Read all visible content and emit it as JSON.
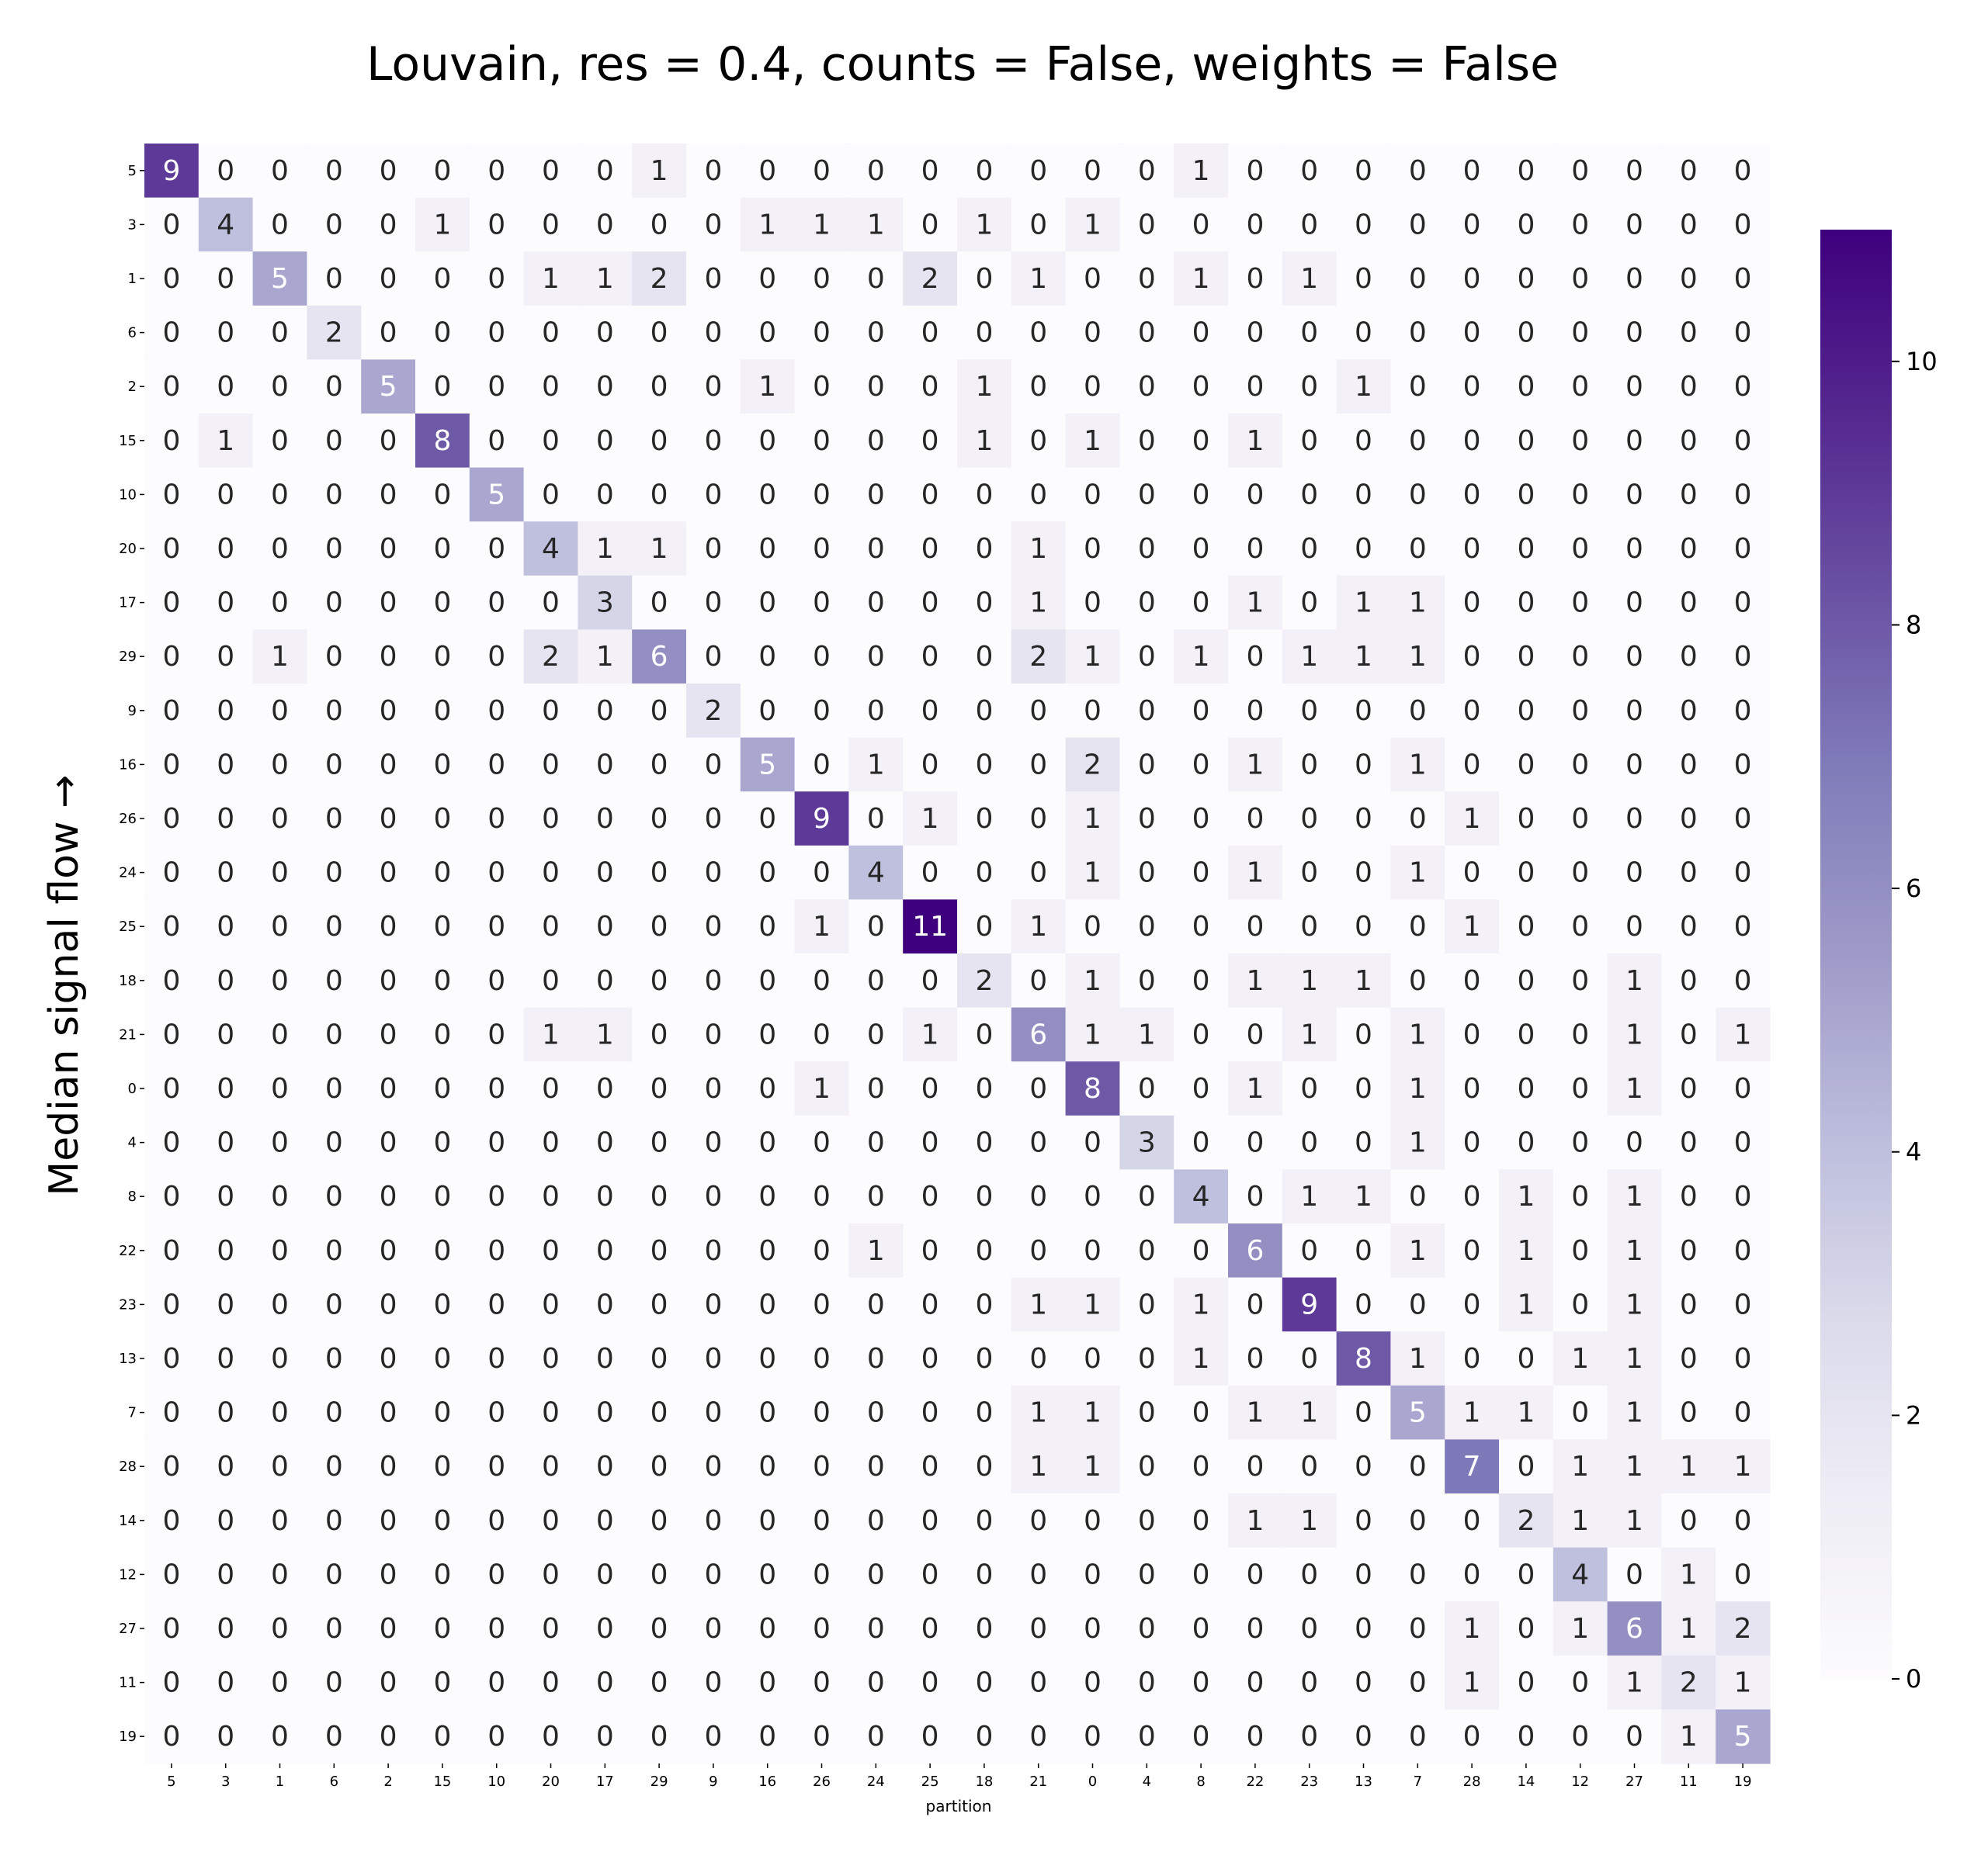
{
  "chart_data": {
    "type": "heatmap",
    "title": "Louvain, res = 0.4, counts = False, weights = False",
    "xlabel": "partition",
    "ylabel": "Median signal flow →",
    "x_categories": [
      "5",
      "3",
      "1",
      "6",
      "2",
      "15",
      "10",
      "20",
      "17",
      "29",
      "9",
      "16",
      "26",
      "24",
      "25",
      "18",
      "21",
      "0",
      "4",
      "8",
      "22",
      "23",
      "13",
      "7",
      "28",
      "14",
      "12",
      "27",
      "11",
      "19"
    ],
    "y_categories": [
      "5",
      "3",
      "1",
      "6",
      "2",
      "15",
      "10",
      "20",
      "17",
      "29",
      "9",
      "16",
      "26",
      "24",
      "25",
      "18",
      "21",
      "0",
      "4",
      "8",
      "22",
      "23",
      "13",
      "7",
      "28",
      "14",
      "12",
      "27",
      "11",
      "19"
    ],
    "colorbar": {
      "min": 0,
      "max": 11,
      "ticks": [
        "0",
        "2",
        "4",
        "6",
        "8",
        "10"
      ],
      "colormap": "Purples"
    },
    "values": [
      [
        9,
        0,
        0,
        0,
        0,
        0,
        0,
        0,
        0,
        1,
        0,
        0,
        0,
        0,
        0,
        0,
        0,
        0,
        0,
        1,
        0,
        0,
        0,
        0,
        0,
        0,
        0,
        0,
        0,
        0
      ],
      [
        0,
        4,
        0,
        0,
        0,
        1,
        0,
        0,
        0,
        0,
        0,
        1,
        1,
        1,
        0,
        1,
        0,
        1,
        0,
        0,
        0,
        0,
        0,
        0,
        0,
        0,
        0,
        0,
        0,
        0
      ],
      [
        0,
        0,
        5,
        0,
        0,
        0,
        0,
        1,
        1,
        2,
        0,
        0,
        0,
        0,
        2,
        0,
        1,
        0,
        0,
        1,
        0,
        1,
        0,
        0,
        0,
        0,
        0,
        0,
        0,
        0
      ],
      [
        0,
        0,
        0,
        2,
        0,
        0,
        0,
        0,
        0,
        0,
        0,
        0,
        0,
        0,
        0,
        0,
        0,
        0,
        0,
        0,
        0,
        0,
        0,
        0,
        0,
        0,
        0,
        0,
        0,
        0
      ],
      [
        0,
        0,
        0,
        0,
        5,
        0,
        0,
        0,
        0,
        0,
        0,
        1,
        0,
        0,
        0,
        1,
        0,
        0,
        0,
        0,
        0,
        0,
        1,
        0,
        0,
        0,
        0,
        0,
        0,
        0
      ],
      [
        0,
        1,
        0,
        0,
        0,
        8,
        0,
        0,
        0,
        0,
        0,
        0,
        0,
        0,
        0,
        1,
        0,
        1,
        0,
        0,
        1,
        0,
        0,
        0,
        0,
        0,
        0,
        0,
        0,
        0
      ],
      [
        0,
        0,
        0,
        0,
        0,
        0,
        5,
        0,
        0,
        0,
        0,
        0,
        0,
        0,
        0,
        0,
        0,
        0,
        0,
        0,
        0,
        0,
        0,
        0,
        0,
        0,
        0,
        0,
        0,
        0
      ],
      [
        0,
        0,
        0,
        0,
        0,
        0,
        0,
        4,
        1,
        1,
        0,
        0,
        0,
        0,
        0,
        0,
        1,
        0,
        0,
        0,
        0,
        0,
        0,
        0,
        0,
        0,
        0,
        0,
        0,
        0
      ],
      [
        0,
        0,
        0,
        0,
        0,
        0,
        0,
        0,
        3,
        0,
        0,
        0,
        0,
        0,
        0,
        0,
        1,
        0,
        0,
        0,
        1,
        0,
        1,
        1,
        0,
        0,
        0,
        0,
        0,
        0
      ],
      [
        0,
        0,
        1,
        0,
        0,
        0,
        0,
        2,
        1,
        6,
        0,
        0,
        0,
        0,
        0,
        0,
        2,
        1,
        0,
        1,
        0,
        1,
        1,
        1,
        0,
        0,
        0,
        0,
        0,
        0
      ],
      [
        0,
        0,
        0,
        0,
        0,
        0,
        0,
        0,
        0,
        0,
        2,
        0,
        0,
        0,
        0,
        0,
        0,
        0,
        0,
        0,
        0,
        0,
        0,
        0,
        0,
        0,
        0,
        0,
        0,
        0
      ],
      [
        0,
        0,
        0,
        0,
        0,
        0,
        0,
        0,
        0,
        0,
        0,
        5,
        0,
        1,
        0,
        0,
        0,
        2,
        0,
        0,
        1,
        0,
        0,
        1,
        0,
        0,
        0,
        0,
        0,
        0
      ],
      [
        0,
        0,
        0,
        0,
        0,
        0,
        0,
        0,
        0,
        0,
        0,
        0,
        9,
        0,
        1,
        0,
        0,
        1,
        0,
        0,
        0,
        0,
        0,
        0,
        1,
        0,
        0,
        0,
        0,
        0
      ],
      [
        0,
        0,
        0,
        0,
        0,
        0,
        0,
        0,
        0,
        0,
        0,
        0,
        0,
        4,
        0,
        0,
        0,
        1,
        0,
        0,
        1,
        0,
        0,
        1,
        0,
        0,
        0,
        0,
        0,
        0
      ],
      [
        0,
        0,
        0,
        0,
        0,
        0,
        0,
        0,
        0,
        0,
        0,
        0,
        1,
        0,
        11,
        0,
        1,
        0,
        0,
        0,
        0,
        0,
        0,
        0,
        1,
        0,
        0,
        0,
        0,
        0
      ],
      [
        0,
        0,
        0,
        0,
        0,
        0,
        0,
        0,
        0,
        0,
        0,
        0,
        0,
        0,
        0,
        2,
        0,
        1,
        0,
        0,
        1,
        1,
        1,
        0,
        0,
        0,
        0,
        1,
        0,
        0
      ],
      [
        0,
        0,
        0,
        0,
        0,
        0,
        0,
        1,
        1,
        0,
        0,
        0,
        0,
        0,
        1,
        0,
        6,
        1,
        1,
        0,
        0,
        1,
        0,
        1,
        0,
        0,
        0,
        1,
        0,
        1
      ],
      [
        0,
        0,
        0,
        0,
        0,
        0,
        0,
        0,
        0,
        0,
        0,
        0,
        1,
        0,
        0,
        0,
        0,
        8,
        0,
        0,
        1,
        0,
        0,
        1,
        0,
        0,
        0,
        1,
        0,
        0
      ],
      [
        0,
        0,
        0,
        0,
        0,
        0,
        0,
        0,
        0,
        0,
        0,
        0,
        0,
        0,
        0,
        0,
        0,
        0,
        3,
        0,
        0,
        0,
        0,
        1,
        0,
        0,
        0,
        0,
        0,
        0
      ],
      [
        0,
        0,
        0,
        0,
        0,
        0,
        0,
        0,
        0,
        0,
        0,
        0,
        0,
        0,
        0,
        0,
        0,
        0,
        0,
        4,
        0,
        1,
        1,
        0,
        0,
        1,
        0,
        1,
        0,
        0
      ],
      [
        0,
        0,
        0,
        0,
        0,
        0,
        0,
        0,
        0,
        0,
        0,
        0,
        0,
        1,
        0,
        0,
        0,
        0,
        0,
        0,
        6,
        0,
        0,
        1,
        0,
        1,
        0,
        1,
        0,
        0
      ],
      [
        0,
        0,
        0,
        0,
        0,
        0,
        0,
        0,
        0,
        0,
        0,
        0,
        0,
        0,
        0,
        0,
        1,
        1,
        0,
        1,
        0,
        9,
        0,
        0,
        0,
        1,
        0,
        1,
        0,
        0
      ],
      [
        0,
        0,
        0,
        0,
        0,
        0,
        0,
        0,
        0,
        0,
        0,
        0,
        0,
        0,
        0,
        0,
        0,
        0,
        0,
        1,
        0,
        0,
        8,
        1,
        0,
        0,
        1,
        1,
        0,
        0
      ],
      [
        0,
        0,
        0,
        0,
        0,
        0,
        0,
        0,
        0,
        0,
        0,
        0,
        0,
        0,
        0,
        0,
        1,
        1,
        0,
        0,
        1,
        1,
        0,
        5,
        1,
        1,
        0,
        1,
        0,
        0
      ],
      [
        0,
        0,
        0,
        0,
        0,
        0,
        0,
        0,
        0,
        0,
        0,
        0,
        0,
        0,
        0,
        0,
        1,
        1,
        0,
        0,
        0,
        0,
        0,
        0,
        7,
        0,
        1,
        1,
        1,
        1
      ],
      [
        0,
        0,
        0,
        0,
        0,
        0,
        0,
        0,
        0,
        0,
        0,
        0,
        0,
        0,
        0,
        0,
        0,
        0,
        0,
        0,
        1,
        1,
        0,
        0,
        0,
        2,
        1,
        1,
        0,
        0
      ],
      [
        0,
        0,
        0,
        0,
        0,
        0,
        0,
        0,
        0,
        0,
        0,
        0,
        0,
        0,
        0,
        0,
        0,
        0,
        0,
        0,
        0,
        0,
        0,
        0,
        0,
        0,
        4,
        0,
        1,
        0
      ],
      [
        0,
        0,
        0,
        0,
        0,
        0,
        0,
        0,
        0,
        0,
        0,
        0,
        0,
        0,
        0,
        0,
        0,
        0,
        0,
        0,
        0,
        0,
        0,
        0,
        1,
        0,
        1,
        6,
        1,
        2
      ],
      [
        0,
        0,
        0,
        0,
        0,
        0,
        0,
        0,
        0,
        0,
        0,
        0,
        0,
        0,
        0,
        0,
        0,
        0,
        0,
        0,
        0,
        0,
        0,
        0,
        1,
        0,
        0,
        1,
        2,
        1
      ],
      [
        0,
        0,
        0,
        0,
        0,
        0,
        0,
        0,
        0,
        0,
        0,
        0,
        0,
        0,
        0,
        0,
        0,
        0,
        0,
        0,
        0,
        0,
        0,
        0,
        0,
        0,
        0,
        0,
        1,
        5
      ]
    ]
  }
}
